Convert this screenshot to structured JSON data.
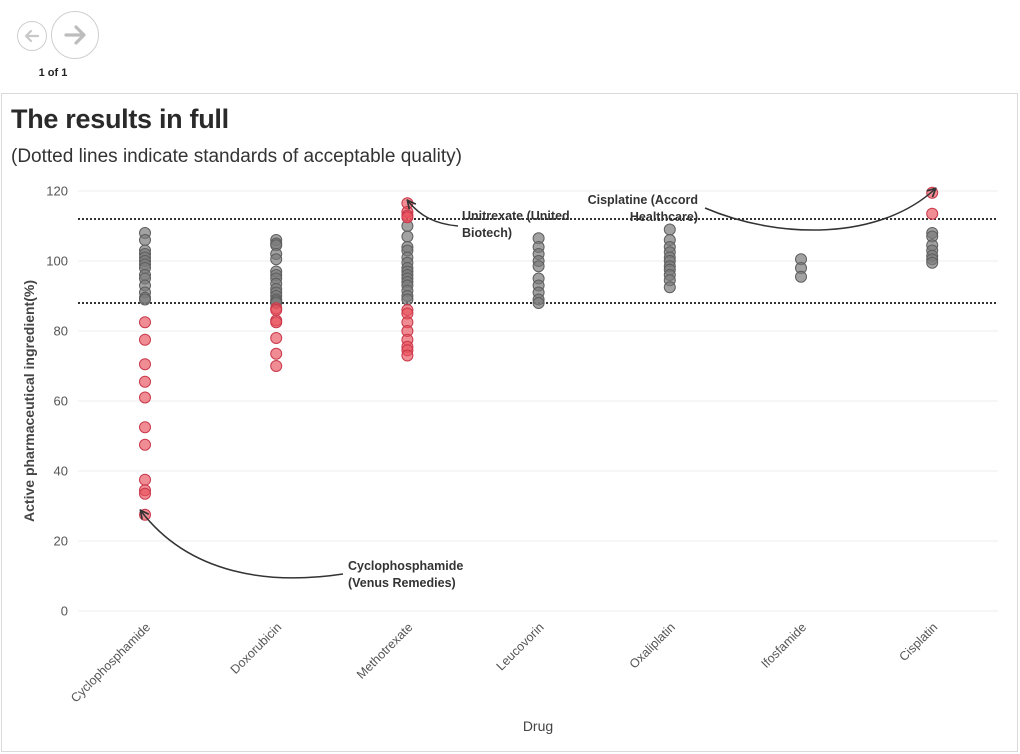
{
  "nav": {
    "prev_icon": "arrow-left-icon",
    "next_icon": "arrow-right-icon",
    "page_indicator": "1 of 1"
  },
  "chart_data": {
    "type": "scatter",
    "title": "The results in full",
    "subtitle": "(Dotted lines indicate standards of acceptable quality)",
    "xlabel": "Drug",
    "ylabel": "Active pharmaceutical ingredient(%)",
    "ylim": [
      0,
      120
    ],
    "yticks": [
      0,
      20,
      40,
      60,
      80,
      100,
      120
    ],
    "grid": true,
    "reference_lines": [
      112,
      88
    ],
    "categories": [
      "Cyclophosphamide",
      "Doxorubicin",
      "Methotrexate",
      "Leucovorin",
      "Oxaliplatin",
      "Ifosfamide",
      "Cisplatin"
    ],
    "colors": {
      "acceptable": "#7a7a7a",
      "substandard": "#e8505b"
    },
    "series": [
      {
        "category": "Cyclophosphamide",
        "acceptable": [
          108,
          106,
          103,
          102,
          101,
          100,
          99,
          98,
          96,
          95,
          93,
          91,
          89.5,
          89
        ],
        "substandard": [
          82.5,
          77.5,
          70.5,
          65.5,
          61,
          52.5,
          47.5,
          37.5,
          34.5,
          33.5,
          27.5
        ]
      },
      {
        "category": "Doxorubicin",
        "acceptable": [
          106,
          105,
          104.5,
          102,
          100.5,
          97,
          96,
          95,
          93.5,
          92,
          91,
          90,
          89,
          88.5,
          88
        ],
        "substandard": [
          86.5,
          86,
          83,
          82.5,
          78,
          73.5,
          70
        ]
      },
      {
        "category": "Methotrexate",
        "acceptable": [
          110,
          107,
          104,
          103,
          101,
          99.5,
          98,
          97,
          96,
          95,
          94,
          93,
          91.5,
          90,
          89
        ],
        "substandard": [
          116.5,
          114,
          113,
          112.5,
          86,
          85,
          82.5,
          80,
          77.5,
          75.5,
          74.5,
          73
        ]
      },
      {
        "category": "Leucovorin",
        "acceptable": [
          106.5,
          104,
          102,
          100,
          98.5,
          95,
          93,
          91,
          89,
          88
        ]
      },
      {
        "category": "Oxaliplatin",
        "acceptable": [
          109,
          106,
          104,
          102.5,
          101,
          100,
          98.5,
          97.5,
          96,
          94.5,
          92.5
        ]
      },
      {
        "category": "Ifosfamide",
        "acceptable": [
          100.5,
          98,
          95.5
        ]
      },
      {
        "category": "Cisplatin",
        "acceptable": [
          108,
          107,
          104.5,
          103,
          101.5,
          100.5,
          99.5
        ],
        "substandard": [
          119.5,
          113.5
        ]
      }
    ],
    "annotations": [
      {
        "lines": [
          "Cyclophosphamide",
          "(Venus Remedies)"
        ],
        "category": "Cyclophosphamide",
        "value": 27.5
      },
      {
        "lines": [
          "Unitrexate (United",
          "Biotech)"
        ],
        "category": "Methotrexate",
        "value": 116.5
      },
      {
        "lines": [
          "Cisplatine (Accord",
          "Healthcare)"
        ],
        "category": "Cisplatin",
        "value": 119.5
      }
    ]
  }
}
